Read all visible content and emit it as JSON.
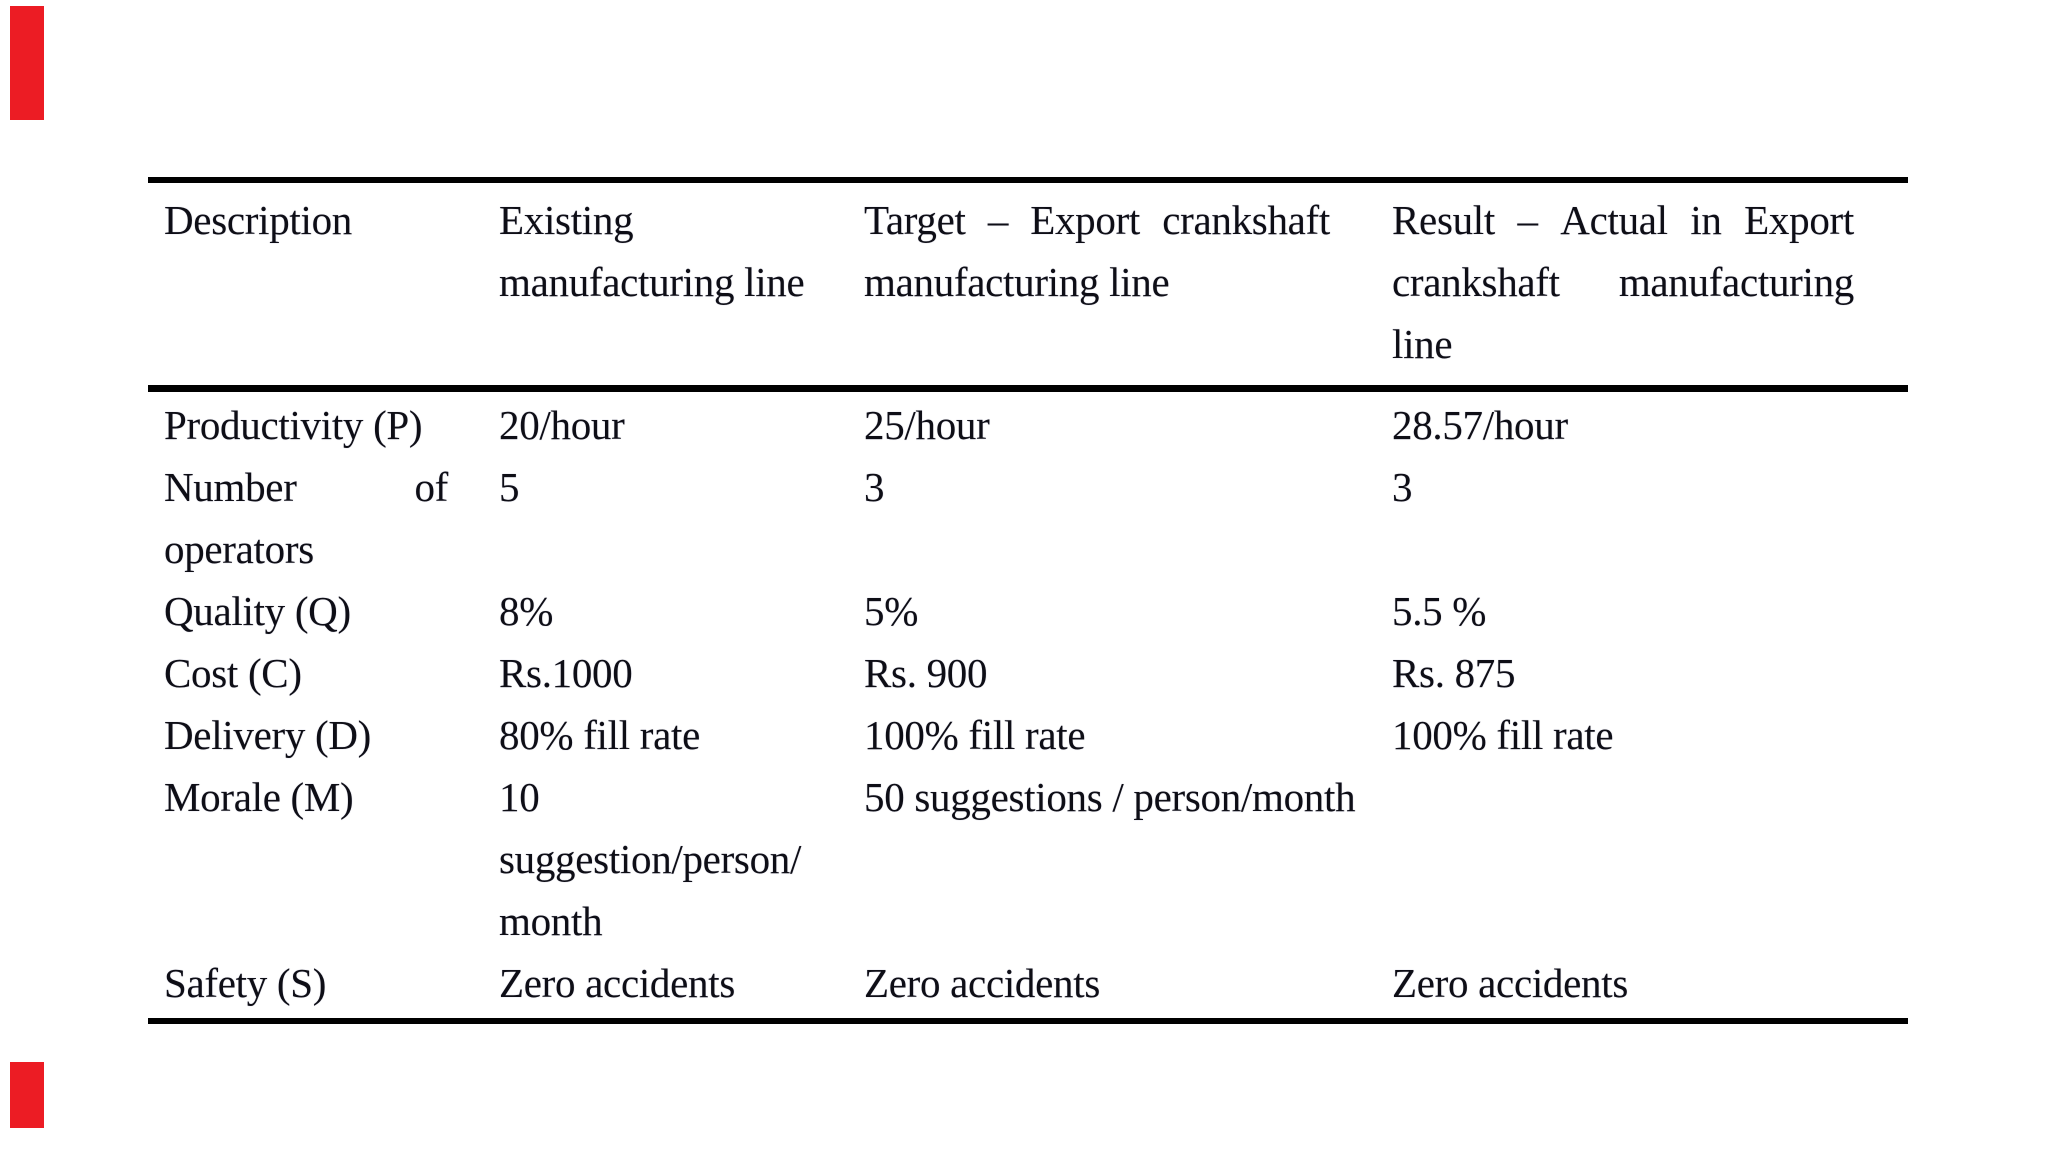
{
  "colors": {
    "background": "#ffffff",
    "text": "#0e0e16",
    "border": "#000000",
    "marker_red": "#ec1c24"
  },
  "markers": {
    "top_label": "red-edge-mark-top",
    "bottom_label": "red-edge-mark-bottom"
  },
  "table": {
    "header": {
      "description": {
        "lines": [
          "Description"
        ]
      },
      "existing": {
        "lines": [
          "Existing",
          "manufacturing line"
        ]
      },
      "target": {
        "line1_words": [
          "Target",
          "–",
          "Export",
          "crankshaft"
        ],
        "lines": [
          "manufacturing line"
        ]
      },
      "result": {
        "line1_words": [
          "Result",
          "–",
          "Actual",
          "in",
          "Export"
        ],
        "line2_words": [
          "crankshaft",
          "manufacturing"
        ],
        "lines": [
          "line"
        ]
      }
    },
    "rows": [
      {
        "name": "productivity",
        "desc_lines": [
          "Productivity (P)"
        ],
        "existing": [
          "20/hour"
        ],
        "target": [
          "25/hour"
        ],
        "result": [
          "28.57/hour"
        ]
      },
      {
        "name": "number-of-operators",
        "desc_justified": [
          "Number",
          "of"
        ],
        "desc_lines": [
          "operators"
        ],
        "existing": [
          "5"
        ],
        "target": [
          "3"
        ],
        "result": [
          "3"
        ]
      },
      {
        "name": "quality",
        "desc_lines": [
          "Quality (Q)"
        ],
        "existing": [
          "8%"
        ],
        "target": [
          "5%"
        ],
        "result": [
          "5.5 %"
        ]
      },
      {
        "name": "cost",
        "desc_lines": [
          "Cost (C)"
        ],
        "existing": [
          "Rs.1000"
        ],
        "target": [
          "Rs. 900"
        ],
        "result": [
          "Rs. 875"
        ]
      },
      {
        "name": "delivery",
        "desc_lines": [
          "Delivery (D)"
        ],
        "existing": [
          "80% fill rate"
        ],
        "target": [
          "100% fill rate"
        ],
        "result": [
          "100% fill rate"
        ]
      },
      {
        "name": "morale",
        "desc_lines": [
          "Morale (M)"
        ],
        "existing": [
          "10",
          "suggestion/person/",
          "month"
        ],
        "target": [
          "50 suggestions / person/month"
        ],
        "result": []
      },
      {
        "name": "safety",
        "desc_lines": [
          "Safety (S)"
        ],
        "existing": [
          "Zero accidents"
        ],
        "target": [
          "Zero accidents"
        ],
        "result": [
          "Zero accidents"
        ]
      }
    ]
  }
}
